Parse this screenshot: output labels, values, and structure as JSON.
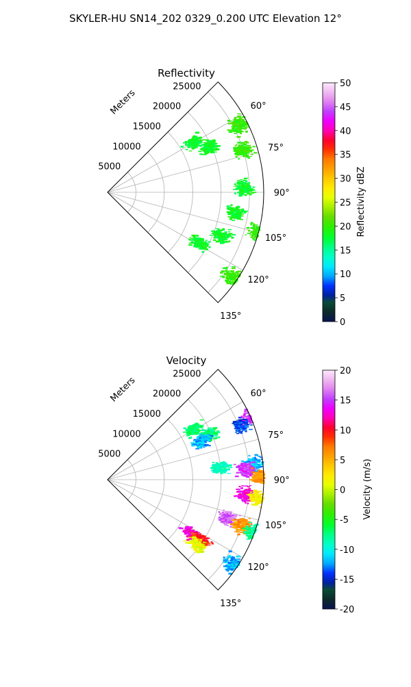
{
  "figure": {
    "title": "SKYLER-HU  SN14_202  0329_0.200 UTC Elevation 12°"
  },
  "chart_data": [
    {
      "type": "heatmap",
      "coordinate_system": "polar-sector",
      "title": "Reflectivity",
      "range_label": "Meters",
      "range_ticks": [
        5000,
        10000,
        15000,
        20000,
        25000
      ],
      "range_max": 27500,
      "azimuth_ticks": [
        "60°",
        "75°",
        "90°",
        "105°",
        "120°",
        "135°"
      ],
      "azimuth_tick_values": [
        60,
        75,
        90,
        105,
        120,
        135
      ],
      "azimuth_range": [
        45,
        135
      ],
      "grid": true,
      "colorbar": {
        "label": "Reflectivity dBZ",
        "min": 0,
        "max": 50,
        "ticks": [
          "0",
          "5",
          "10",
          "15",
          "20",
          "25",
          "30",
          "35",
          "40",
          "45",
          "50"
        ],
        "tick_values": [
          0,
          5,
          10,
          15,
          20,
          25,
          30,
          35,
          40,
          45,
          50
        ]
      },
      "echo_clusters": [
        {
          "azimuth": 60,
          "range": 17500,
          "value": 18
        },
        {
          "azimuth": 66,
          "range": 19500,
          "value": 18
        },
        {
          "azimuth": 63,
          "range": 26000,
          "value": 20
        },
        {
          "azimuth": 73,
          "range": 25000,
          "value": 20
        },
        {
          "azimuth": 88,
          "range": 24000,
          "value": 18
        },
        {
          "azimuth": 99,
          "range": 23000,
          "value": 18
        },
        {
          "azimuth": 111,
          "range": 21500,
          "value": 18
        },
        {
          "azimuth": 119,
          "range": 18500,
          "value": 18
        },
        {
          "azimuth": 124,
          "range": 26500,
          "value": 20
        },
        {
          "azimuth": 105,
          "range": 27500,
          "value": 20
        }
      ]
    },
    {
      "type": "heatmap",
      "coordinate_system": "polar-sector",
      "title": "Velocity",
      "range_label": "Meters",
      "range_ticks": [
        5000,
        10000,
        15000,
        20000,
        25000
      ],
      "range_max": 27500,
      "azimuth_ticks": [
        "60°",
        "75°",
        "90°",
        "105°",
        "120°",
        "135°"
      ],
      "azimuth_tick_values": [
        60,
        75,
        90,
        105,
        120,
        135
      ],
      "azimuth_range": [
        45,
        135
      ],
      "grid": true,
      "colorbar": {
        "label": "Velocity (m/s)",
        "min": -20,
        "max": 20,
        "ticks": [
          "-20",
          "-15",
          "-10",
          "-5",
          "0",
          "5",
          "10",
          "15",
          "20"
        ],
        "tick_values": [
          -20,
          -15,
          -10,
          -5,
          0,
          5,
          10,
          15,
          20
        ]
      },
      "echo_clusters": [
        {
          "azimuth": 60,
          "range": 17500,
          "value": -7
        },
        {
          "azimuth": 66,
          "range": 19500,
          "value": -7
        },
        {
          "azimuth": 68,
          "range": 18000,
          "value": -12
        },
        {
          "azimuth": 68,
          "range": 25500,
          "value": -14
        },
        {
          "azimuth": 66,
          "range": 28000,
          "value": 15
        },
        {
          "azimuth": 84,
          "range": 20000,
          "value": -9
        },
        {
          "azimuth": 84,
          "range": 26000,
          "value": -12
        },
        {
          "azimuth": 86,
          "range": 24500,
          "value": 15
        },
        {
          "azimuth": 89,
          "range": 27000,
          "value": 6
        },
        {
          "azimuth": 96,
          "range": 24500,
          "value": 13
        },
        {
          "azimuth": 97,
          "range": 26500,
          "value": 2
        },
        {
          "azimuth": 108,
          "range": 22500,
          "value": 16
        },
        {
          "azimuth": 109,
          "range": 25000,
          "value": 6
        },
        {
          "azimuth": 110,
          "range": 27500,
          "value": -8
        },
        {
          "azimuth": 123,
          "range": 17500,
          "value": 13
        },
        {
          "azimuth": 123,
          "range": 19500,
          "value": 9
        },
        {
          "azimuth": 126,
          "range": 19500,
          "value": 1
        },
        {
          "azimuth": 124,
          "range": 26500,
          "value": -12
        }
      ]
    }
  ]
}
